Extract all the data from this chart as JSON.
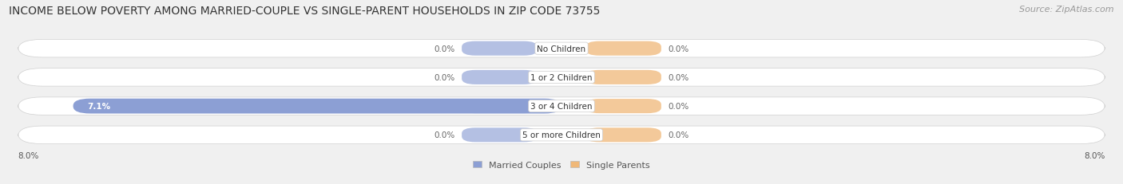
{
  "title": "INCOME BELOW POVERTY AMONG MARRIED-COUPLE VS SINGLE-PARENT HOUSEHOLDS IN ZIP CODE 73755",
  "source": "Source: ZipAtlas.com",
  "categories": [
    "No Children",
    "1 or 2 Children",
    "3 or 4 Children",
    "5 or more Children"
  ],
  "married_values": [
    0.0,
    0.0,
    7.1,
    0.0
  ],
  "single_values": [
    0.0,
    0.0,
    0.0,
    0.0
  ],
  "married_color": "#8c9fd4",
  "single_color": "#f0b878",
  "bar_bg_color": "#e8e8e8",
  "bar_border_color": "#d0d0d0",
  "xlim": [
    -8.0,
    8.0
  ],
  "x_left_label": "8.0%",
  "x_right_label": "8.0%",
  "title_fontsize": 10,
  "source_fontsize": 8,
  "label_fontsize": 7.5,
  "category_fontsize": 7.5,
  "legend_fontsize": 8,
  "bar_height": 0.62,
  "background_color": "#f0f0f0"
}
